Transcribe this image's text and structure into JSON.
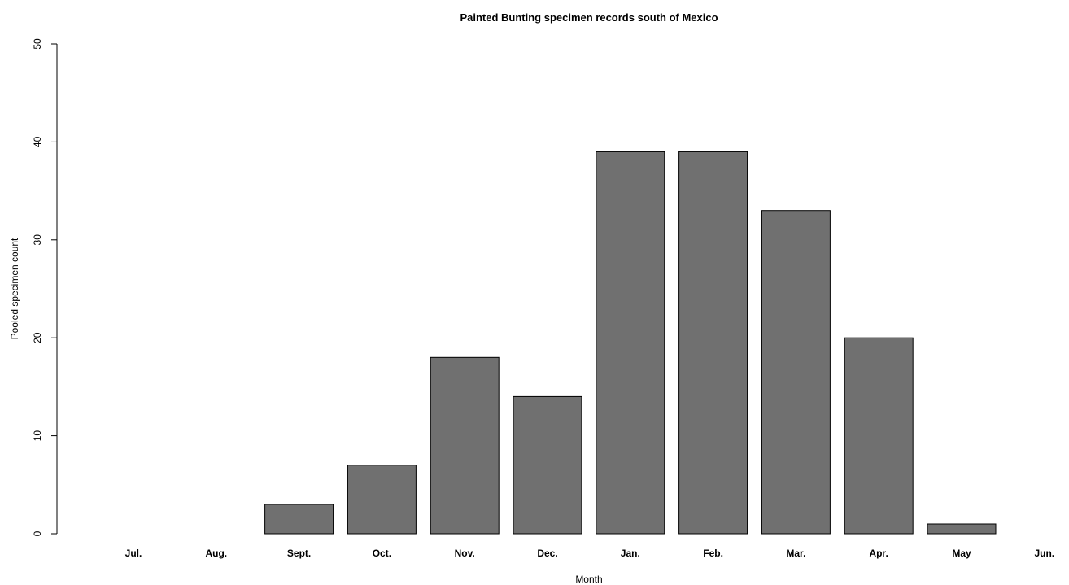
{
  "chart_data": {
    "type": "bar",
    "title": "Painted Bunting specimen records south of Mexico",
    "xlabel": "Month",
    "ylabel": "Pooled specimen count",
    "categories": [
      "Jul.",
      "Aug.",
      "Sept.",
      "Oct.",
      "Nov.",
      "Dec.",
      "Jan.",
      "Feb.",
      "Mar.",
      "Apr.",
      "May",
      "Jun."
    ],
    "values": [
      0,
      0,
      3,
      7,
      18,
      14,
      39,
      39,
      33,
      20,
      1,
      0
    ],
    "ylim": [
      0,
      50
    ],
    "yticks": [
      0,
      10,
      20,
      30,
      40,
      50
    ],
    "yticks_labels": [
      "0",
      "10",
      "20",
      "30",
      "40",
      "50"
    ],
    "grid": false,
    "bar_color": "#707070",
    "bar_edge_color": "#000000"
  }
}
